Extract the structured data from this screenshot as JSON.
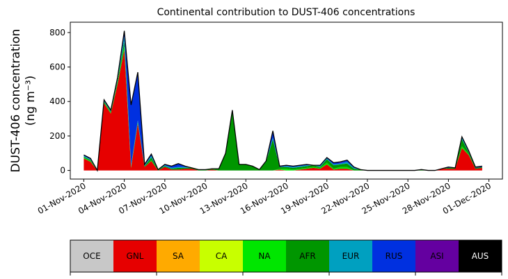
{
  "chart_data": {
    "type": "area",
    "title": "Continental contribution to DUST-406 concentrations",
    "ylabel_line1": "DUST-406 concentration",
    "ylabel_line2": "(ng m⁻³)",
    "xlabel": "",
    "ylim": [
      -50,
      860
    ],
    "xlim_days": [
      -1,
      31
    ],
    "y_ticks": [
      0,
      200,
      400,
      600,
      800
    ],
    "x_tick_days": [
      0,
      3,
      6,
      9,
      12,
      15,
      18,
      21,
      24,
      27,
      30
    ],
    "x_tick_labels": [
      "01-Nov-2020",
      "04-Nov-2020",
      "07-Nov-2020",
      "10-Nov-2020",
      "13-Nov-2020",
      "16-Nov-2020",
      "19-Nov-2020",
      "22-Nov-2020",
      "25-Nov-2020",
      "28-Nov-2020",
      "01-Dec-2020"
    ],
    "x_dates": [
      "01-Nov-2020",
      "01-Nov-2020 12:00",
      "02-Nov-2020",
      "02-Nov-2020 12:00",
      "03-Nov-2020",
      "03-Nov-2020 12:00",
      "04-Nov-2020",
      "04-Nov-2020 12:00",
      "05-Nov-2020",
      "05-Nov-2020 12:00",
      "06-Nov-2020",
      "06-Nov-2020 12:00",
      "07-Nov-2020",
      "07-Nov-2020 12:00",
      "08-Nov-2020",
      "08-Nov-2020 12:00",
      "09-Nov-2020",
      "09-Nov-2020 12:00",
      "10-Nov-2020",
      "10-Nov-2020 12:00",
      "11-Nov-2020",
      "11-Nov-2020 12:00",
      "12-Nov-2020",
      "12-Nov-2020 12:00",
      "13-Nov-2020",
      "13-Nov-2020 12:00",
      "14-Nov-2020",
      "14-Nov-2020 12:00",
      "15-Nov-2020",
      "15-Nov-2020 12:00",
      "16-Nov-2020",
      "16-Nov-2020 12:00",
      "17-Nov-2020",
      "17-Nov-2020 12:00",
      "18-Nov-2020",
      "18-Nov-2020 12:00",
      "19-Nov-2020",
      "19-Nov-2020 12:00",
      "20-Nov-2020",
      "20-Nov-2020 12:00",
      "21-Nov-2020",
      "21-Nov-2020 12:00",
      "22-Nov-2020",
      "22-Nov-2020 12:00",
      "23-Nov-2020",
      "23-Nov-2020 12:00",
      "24-Nov-2020",
      "24-Nov-2020 12:00",
      "25-Nov-2020",
      "25-Nov-2020 12:00",
      "26-Nov-2020",
      "26-Nov-2020 12:00",
      "27-Nov-2020",
      "27-Nov-2020 12:00",
      "28-Nov-2020",
      "28-Nov-2020 12:00",
      "29-Nov-2020",
      "29-Nov-2020 12:00",
      "30-Nov-2020",
      "30-Nov-2020 12:00"
    ],
    "series": [
      {
        "name": "OCE",
        "color": "#c8c8c8",
        "values": [
          0,
          0,
          0,
          0,
          0,
          0,
          0,
          0,
          0,
          0,
          0,
          0,
          0,
          0,
          0,
          0,
          0,
          0,
          0,
          0,
          0,
          0,
          0,
          0,
          0,
          0,
          0,
          0,
          0,
          0,
          0,
          0,
          0,
          0,
          0,
          0,
          0,
          0,
          0,
          0,
          0,
          0,
          0,
          0,
          0,
          0,
          0,
          0,
          0,
          0,
          0,
          0,
          0,
          0,
          0,
          0,
          0,
          0,
          0,
          0
        ]
      },
      {
        "name": "GNL",
        "color": "#e60000",
        "values": [
          70,
          50,
          0,
          390,
          330,
          500,
          700,
          15,
          270,
          20,
          55,
          0,
          20,
          5,
          5,
          10,
          10,
          0,
          0,
          5,
          0,
          0,
          0,
          0,
          0,
          0,
          0,
          0,
          0,
          5,
          0,
          0,
          5,
          10,
          15,
          10,
          35,
          5,
          10,
          10,
          0,
          0,
          0,
          0,
          0,
          0,
          0,
          0,
          0,
          0,
          0,
          0,
          0,
          10,
          10,
          10,
          130,
          90,
          10,
          15
        ]
      },
      {
        "name": "SA",
        "color": "#ffaa00",
        "values": [
          0,
          0,
          0,
          0,
          0,
          0,
          0,
          0,
          0,
          0,
          0,
          0,
          0,
          0,
          0,
          0,
          0,
          0,
          0,
          0,
          0,
          0,
          0,
          0,
          0,
          0,
          0,
          0,
          0,
          0,
          0,
          0,
          0,
          0,
          0,
          0,
          0,
          0,
          0,
          0,
          0,
          0,
          0,
          0,
          0,
          0,
          0,
          0,
          0,
          0,
          0,
          0,
          0,
          0,
          0,
          0,
          0,
          0,
          0,
          0
        ]
      },
      {
        "name": "CA",
        "color": "#c8ff00",
        "values": [
          0,
          0,
          0,
          0,
          0,
          0,
          0,
          0,
          0,
          0,
          0,
          0,
          0,
          0,
          0,
          0,
          0,
          0,
          0,
          0,
          0,
          0,
          0,
          0,
          0,
          0,
          0,
          0,
          0,
          0,
          0,
          0,
          0,
          0,
          0,
          0,
          0,
          0,
          0,
          0,
          0,
          0,
          0,
          0,
          0,
          0,
          0,
          0,
          0,
          0,
          0,
          0,
          0,
          0,
          0,
          0,
          0,
          0,
          0,
          0
        ]
      },
      {
        "name": "NA",
        "color": "#00e600",
        "values": [
          5,
          5,
          0,
          5,
          5,
          10,
          20,
          5,
          0,
          0,
          5,
          0,
          0,
          0,
          0,
          0,
          0,
          0,
          0,
          0,
          0,
          0,
          0,
          0,
          0,
          0,
          0,
          0,
          0,
          5,
          10,
          5,
          5,
          5,
          5,
          5,
          10,
          5,
          10,
          10,
          0,
          0,
          0,
          0,
          0,
          0,
          0,
          0,
          0,
          0,
          0,
          0,
          0,
          0,
          0,
          0,
          10,
          5,
          0,
          0
        ]
      },
      {
        "name": "AFR",
        "color": "#009600",
        "values": [
          5,
          5,
          0,
          5,
          5,
          10,
          30,
          5,
          10,
          5,
          15,
          5,
          5,
          5,
          10,
          5,
          5,
          5,
          5,
          5,
          10,
          100,
          350,
          35,
          35,
          25,
          5,
          50,
          180,
          10,
          10,
          10,
          10,
          10,
          10,
          5,
          20,
          20,
          15,
          20,
          10,
          5,
          0,
          0,
          0,
          0,
          0,
          0,
          0,
          0,
          5,
          0,
          0,
          0,
          5,
          5,
          40,
          10,
          5,
          5
        ]
      },
      {
        "name": "EUR",
        "color": "#00a0c0",
        "values": [
          5,
          5,
          0,
          5,
          5,
          10,
          30,
          5,
          10,
          5,
          10,
          0,
          5,
          5,
          5,
          5,
          0,
          0,
          0,
          0,
          0,
          0,
          0,
          0,
          0,
          0,
          0,
          5,
          10,
          0,
          5,
          5,
          5,
          5,
          0,
          5,
          5,
          5,
          5,
          10,
          5,
          0,
          0,
          0,
          0,
          0,
          0,
          0,
          0,
          0,
          0,
          0,
          0,
          0,
          0,
          0,
          10,
          5,
          0,
          0
        ]
      },
      {
        "name": "RUS",
        "color": "#0030e0",
        "values": [
          5,
          5,
          0,
          5,
          5,
          10,
          30,
          350,
          280,
          5,
          10,
          0,
          5,
          10,
          20,
          5,
          0,
          0,
          0,
          0,
          0,
          0,
          0,
          0,
          0,
          0,
          0,
          0,
          40,
          5,
          5,
          5,
          5,
          5,
          0,
          5,
          5,
          10,
          5,
          10,
          5,
          0,
          0,
          0,
          0,
          0,
          0,
          0,
          0,
          0,
          0,
          0,
          0,
          0,
          5,
          0,
          5,
          5,
          5,
          5
        ]
      },
      {
        "name": "ASI",
        "color": "#6400a0",
        "values": [
          0,
          0,
          0,
          0,
          0,
          0,
          0,
          0,
          0,
          0,
          0,
          0,
          0,
          0,
          0,
          0,
          0,
          0,
          0,
          0,
          0,
          0,
          0,
          0,
          0,
          0,
          0,
          0,
          0,
          0,
          0,
          0,
          0,
          0,
          0,
          0,
          0,
          0,
          5,
          0,
          0,
          0,
          0,
          0,
          0,
          0,
          0,
          0,
          0,
          0,
          0,
          0,
          0,
          0,
          0,
          0,
          0,
          0,
          0,
          0
        ]
      },
      {
        "name": "AUS",
        "color": "#000000",
        "values": [
          0,
          0,
          0,
          0,
          0,
          0,
          0,
          0,
          0,
          0,
          0,
          0,
          0,
          0,
          0,
          0,
          0,
          0,
          0,
          0,
          0,
          0,
          0,
          0,
          0,
          0,
          0,
          0,
          0,
          0,
          0,
          0,
          0,
          0,
          0,
          0,
          0,
          0,
          0,
          0,
          0,
          0,
          0,
          0,
          0,
          0,
          0,
          0,
          0,
          0,
          0,
          0,
          0,
          0,
          0,
          0,
          0,
          0,
          0,
          0
        ]
      }
    ],
    "legend": {
      "placement": "bottom",
      "entries": [
        {
          "label": "OCE",
          "color": "#c8c8c8",
          "text_color": "#000000"
        },
        {
          "label": "GNL",
          "color": "#e60000",
          "text_color": "#000000"
        },
        {
          "label": "SA",
          "color": "#ffaa00",
          "text_color": "#000000"
        },
        {
          "label": "CA",
          "color": "#c8ff00",
          "text_color": "#000000"
        },
        {
          "label": "NA",
          "color": "#00e600",
          "text_color": "#000000"
        },
        {
          "label": "AFR",
          "color": "#009600",
          "text_color": "#000000"
        },
        {
          "label": "EUR",
          "color": "#00a0c0",
          "text_color": "#000000"
        },
        {
          "label": "RUS",
          "color": "#0030e0",
          "text_color": "#000000"
        },
        {
          "label": "ASI",
          "color": "#6400a0",
          "text_color": "#000000"
        },
        {
          "label": "AUS",
          "color": "#000000",
          "text_color": "#ffffff"
        }
      ]
    },
    "grid": false
  }
}
